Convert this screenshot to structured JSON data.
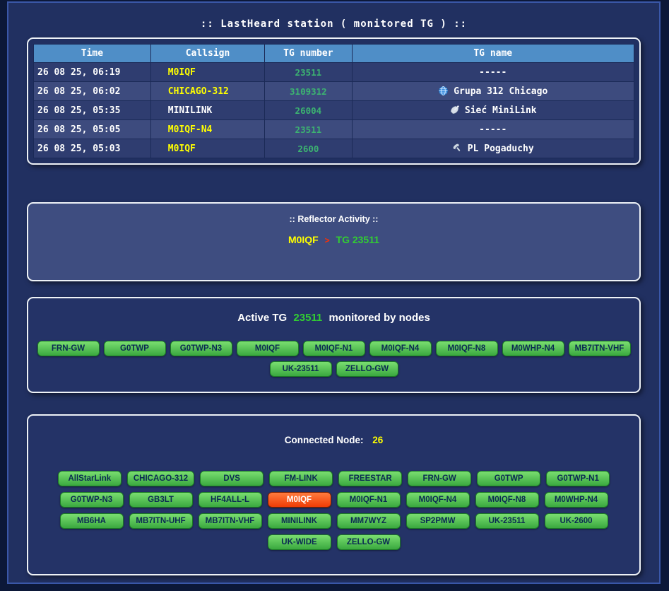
{
  "page": {
    "title": ":: LastHeard station ( monitored TG ) ::"
  },
  "colors": {
    "header_blue": "#4f8ec7",
    "callsign_yellow": "#ffff00",
    "tg_green": "#3cb371",
    "active_green": "#32cd32",
    "arrow_red": "#ff2f00",
    "button_green": "#4caf50",
    "active_button_orange": "#f03c05"
  },
  "lastheard": {
    "columns": [
      "Time",
      "Callsign",
      "TG number",
      "TG name"
    ],
    "rows": [
      {
        "time": "26 08 25, 06:19",
        "callsign": "M0IQF",
        "callsign_color": "#ffff00",
        "tg_number": "23511",
        "tg_name": "-----",
        "icon": ""
      },
      {
        "time": "26 08 25, 06:02",
        "callsign": "CHICAGO-312",
        "callsign_color": "#ffff00",
        "tg_number": "3109312",
        "tg_name": "Grupa 312 Chicago",
        "icon": "globe-icon"
      },
      {
        "time": "26 08 25, 05:35",
        "callsign": "MINILINK",
        "callsign_color": "#ffffff",
        "tg_number": "26004",
        "tg_name": "Sieć MiniLink",
        "icon": "satellite-icon"
      },
      {
        "time": "26 08 25, 05:05",
        "callsign": "M0IQF-N4",
        "callsign_color": "#ffff00",
        "tg_number": "23511",
        "tg_name": "-----",
        "icon": ""
      },
      {
        "time": "26 08 25, 05:03",
        "callsign": "M0IQF",
        "callsign_color": "#ffff00",
        "tg_number": "2600",
        "tg_name": "PL Pogaduchy",
        "icon": "phone-icon"
      }
    ]
  },
  "reflector_activity": {
    "title": ":: Reflector Activity ::",
    "callsign": "M0IQF",
    "arrow": ">",
    "target": "TG 23511"
  },
  "active_tg": {
    "label_prefix": "Active TG",
    "tg": "23511",
    "label_suffix": "monitored by nodes",
    "nodes": [
      "FRN-GW",
      "G0TWP",
      "G0TWP-N3",
      "M0IQF",
      "M0IQF-N1",
      "M0IQF-N4",
      "M0IQF-N8",
      "M0WHP-N4",
      "MB7ITN-VHF",
      "UK-23511",
      "ZELLO-GW"
    ]
  },
  "connected": {
    "label": "Connected Node:",
    "count": "26",
    "active_node": "M0IQF",
    "nodes": [
      "AllStarLink",
      "CHICAGO-312",
      "DVS",
      "FM-LINK",
      "FREESTAR",
      "FRN-GW",
      "G0TWP",
      "G0TWP-N1",
      "G0TWP-N3",
      "GB3LT",
      "HF4ALL-L",
      "M0IQF",
      "M0IQF-N1",
      "M0IQF-N4",
      "M0IQF-N8",
      "M0WHP-N4",
      "MB6HA",
      "MB7ITN-UHF",
      "MB7ITN-VHF",
      "MINILINK",
      "MM7WYZ",
      "SP2PMW",
      "UK-23511",
      "UK-2600",
      "UK-WIDE",
      "ZELLO-GW"
    ]
  }
}
